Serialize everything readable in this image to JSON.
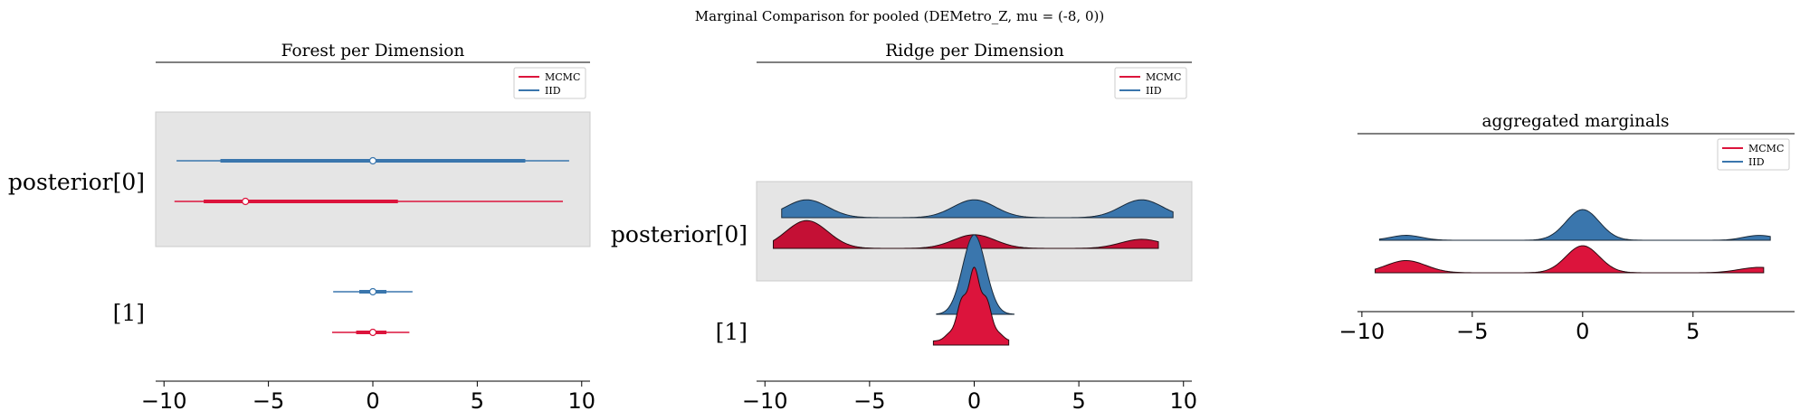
{
  "figure": {
    "title": "Marginal Comparison for pooled (DEMetro_Z, mu = (-8, 0))"
  },
  "colors": {
    "mcmc": "#dc143c",
    "mcmc_ridge": "#c41035",
    "iid": "#3a76ad",
    "shade": "#e5e5e5"
  },
  "legend": {
    "entries": [
      {
        "name": "MCMC",
        "color": "#dc143c"
      },
      {
        "name": "IID",
        "color": "#3a76ad"
      }
    ]
  },
  "chart_data": [
    {
      "type": "forest",
      "title": "Forest per Dimension",
      "xlim": [
        -10.4,
        10.4
      ],
      "xticks": [
        -10,
        -5,
        0,
        5,
        10
      ],
      "xtick_labels": [
        "−10",
        "−5",
        "0",
        "5",
        "10"
      ],
      "rows": [
        {
          "label": "posterior[0]",
          "shaded": true,
          "series": [
            {
              "name": "IID",
              "hdi_94": [
                -9.4,
                9.4
              ],
              "hdi_50": [
                -7.3,
                7.3
              ],
              "point": 0.0
            },
            {
              "name": "MCMC",
              "hdi_94": [
                -9.5,
                9.1
              ],
              "hdi_50": [
                -8.1,
                1.2
              ],
              "point": -6.1
            }
          ]
        },
        {
          "label": "[1]",
          "shaded": false,
          "series": [
            {
              "name": "IID",
              "hdi_94": [
                -1.9,
                1.9
              ],
              "hdi_50": [
                -0.65,
                0.65
              ],
              "point": 0.0
            },
            {
              "name": "MCMC",
              "hdi_94": [
                -1.95,
                1.75
              ],
              "hdi_50": [
                -0.8,
                0.65
              ],
              "point": 0.0
            }
          ]
        }
      ]
    },
    {
      "type": "ridge",
      "title": "Ridge per Dimension",
      "xlim": [
        -10.4,
        10.4
      ],
      "xticks": [
        -10,
        -5,
        0,
        5,
        10
      ],
      "xtick_labels": [
        "−10",
        "−5",
        "0",
        "5",
        "10"
      ],
      "rows": [
        {
          "label": "posterior[0]",
          "shaded": true,
          "series": [
            {
              "name": "IID",
              "range": [
                -9.2,
                9.5
              ],
              "modes": [
                [
                  -8,
                  0.33
                ],
                [
                  0,
                  0.33
                ],
                [
                  8,
                  0.33
                ]
              ],
              "sd": 1.0
            },
            {
              "name": "MCMC",
              "range": [
                -9.6,
                8.8
              ],
              "modes": [
                [
                  -8,
                  0.55
                ],
                [
                  0,
                  0.27
                ],
                [
                  8,
                  0.18
                ]
              ],
              "sd": 1.0
            }
          ]
        },
        {
          "label": "[1]",
          "shaded": false,
          "series": [
            {
              "name": "IID",
              "range": [
                -1.8,
                1.9
              ],
              "modes": [
                [
                  0,
                  1.0
                ]
              ],
              "sd": 0.55
            },
            {
              "name": "MCMC",
              "range": [
                -1.95,
                1.65
              ],
              "modes": [
                [
                  0,
                  1.0
                ]
              ],
              "sd": 0.6
            }
          ]
        }
      ]
    },
    {
      "type": "area",
      "title": "aggregated marginals",
      "xlim": [
        -10.2,
        9.6
      ],
      "xticks": [
        -10,
        -5,
        0,
        5
      ],
      "xtick_labels": [
        "−10",
        "−5",
        "0",
        "5"
      ],
      "series": [
        {
          "name": "IID",
          "range": [
            -9.2,
            8.5
          ],
          "modes": [
            [
              -8,
              0.16
            ],
            [
              0,
              1.0
            ],
            [
              8,
              0.16
            ]
          ],
          "sd_side": 0.7,
          "sd_center": 0.75
        },
        {
          "name": "MCMC",
          "range": [
            -9.4,
            8.2
          ],
          "modes": [
            [
              -8,
              0.45
            ],
            [
              0,
              1.0
            ],
            [
              8,
              0.2
            ]
          ],
          "sd_side": 0.9,
          "sd_center": 0.75
        }
      ]
    }
  ]
}
